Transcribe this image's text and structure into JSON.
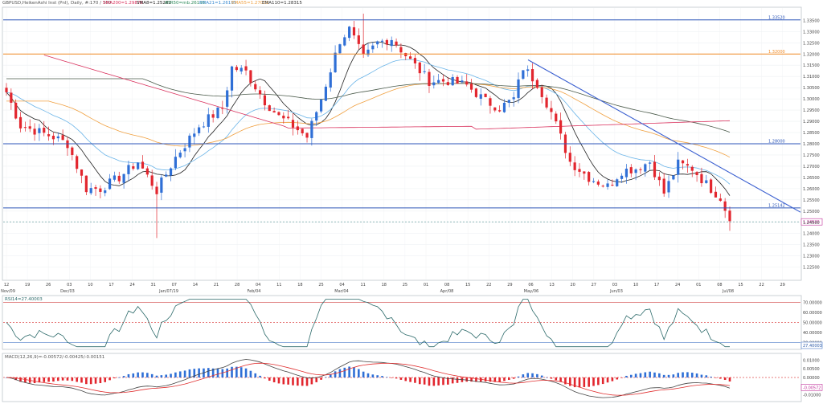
{
  "header": {
    "main_title": "GBPUSD,HeikenAshi Inst (Pnl), Daily, #:170 / 360",
    "ind1": "SMA200=1.29876",
    "ind2": "SMA8=1.25282",
    "ind3": "ATR50=mb.26195",
    "ind4": "EMA21=1.26195",
    "ind5": "EMA55=1.27022",
    "ind6": "EMA110=1.28315",
    "rsi_title": "RSI14=27.40003",
    "macd_title": "MACD(12,26,9)=-0.00572/-0.00425/-0.00151"
  },
  "colors": {
    "up": "#2f6fd6",
    "down": "#e2262e",
    "sma8": "#222222",
    "ema21": "#6ab4e8",
    "ema55": "#f0a040",
    "ema110": "#4a5a4a",
    "sma200": "#d9305c",
    "trend": "#3a5fd0",
    "hline_blue": "#2d56b8",
    "hline_orange": "#f08a24",
    "rsi": "#2c6a6a",
    "macd_line": "#444444",
    "macd_signal": "#e03030"
  },
  "chart_data": [
    {
      "type": "candlestick",
      "name": "price",
      "ylim": [
        1.2195,
        1.3405
      ],
      "y_ticks": [
        "1.33500",
        "1.33000",
        "1.32500",
        "1.32000",
        "1.31500",
        "1.31000",
        "1.30500",
        "1.30000",
        "1.29500",
        "1.29000",
        "1.28500",
        "1.28000",
        "1.27500",
        "1.27000",
        "1.26500",
        "1.26000",
        "1.25500",
        "1.25000",
        "1.24500",
        "1.24000",
        "1.23500",
        "1.23000",
        "1.22500"
      ],
      "x_tick_labels": [
        "12",
        "19",
        "26",
        "03",
        "10",
        "17",
        "24",
        "31",
        "07",
        "14",
        "21",
        "28",
        "04",
        "11",
        "18",
        "25",
        "04",
        "11",
        "18",
        "25",
        "01",
        "08",
        "15",
        "22",
        "29",
        "06",
        "13",
        "20",
        "27",
        "03",
        "10",
        "17",
        "24",
        "01",
        "08",
        "15",
        "22",
        "29"
      ],
      "x_month_labels": [
        "Nov/09",
        "Dec/03",
        "Jan/07/19",
        "Feb/04",
        "Mar/04",
        "Apr/08",
        "May/06",
        "Jun/03",
        "Jul/08"
      ],
      "hlines": [
        {
          "value": 1.3352,
          "label": "1.33520",
          "color": "blue"
        },
        {
          "value": 1.32,
          "label": "1.32000",
          "color": "orange"
        },
        {
          "value": 1.28,
          "label": "1.28000",
          "color": "blue"
        },
        {
          "value": 1.2514,
          "label": "1.25142",
          "color": "blue"
        }
      ],
      "last_price_label": "1.24520",
      "trendline": {
        "from": [
          "May/06",
          1.3174
        ],
        "to": [
          "Jul/08+",
          1.25
        ]
      },
      "series": [
        {
          "name": "SMA8"
        },
        {
          "name": "EMA21"
        },
        {
          "name": "EMA55"
        },
        {
          "name": "EMA110"
        },
        {
          "name": "SMA200"
        }
      ]
    },
    {
      "type": "line",
      "name": "RSI14",
      "ylim": [
        25,
        75
      ],
      "y_ticks": [
        "70.00000",
        "60.00000",
        "50.00000",
        "40.00000",
        "30.00000"
      ],
      "levels": [
        70,
        50,
        30
      ],
      "value_label": "27.40003"
    },
    {
      "type": "bar",
      "name": "MACD(12,26,9)",
      "ylim": [
        -0.0125,
        0.0125
      ],
      "y_ticks": [
        "0.01000",
        "0.00500",
        "0.00000",
        "-0.00500",
        "-0.01000"
      ],
      "value_label": "-0.00572"
    }
  ]
}
